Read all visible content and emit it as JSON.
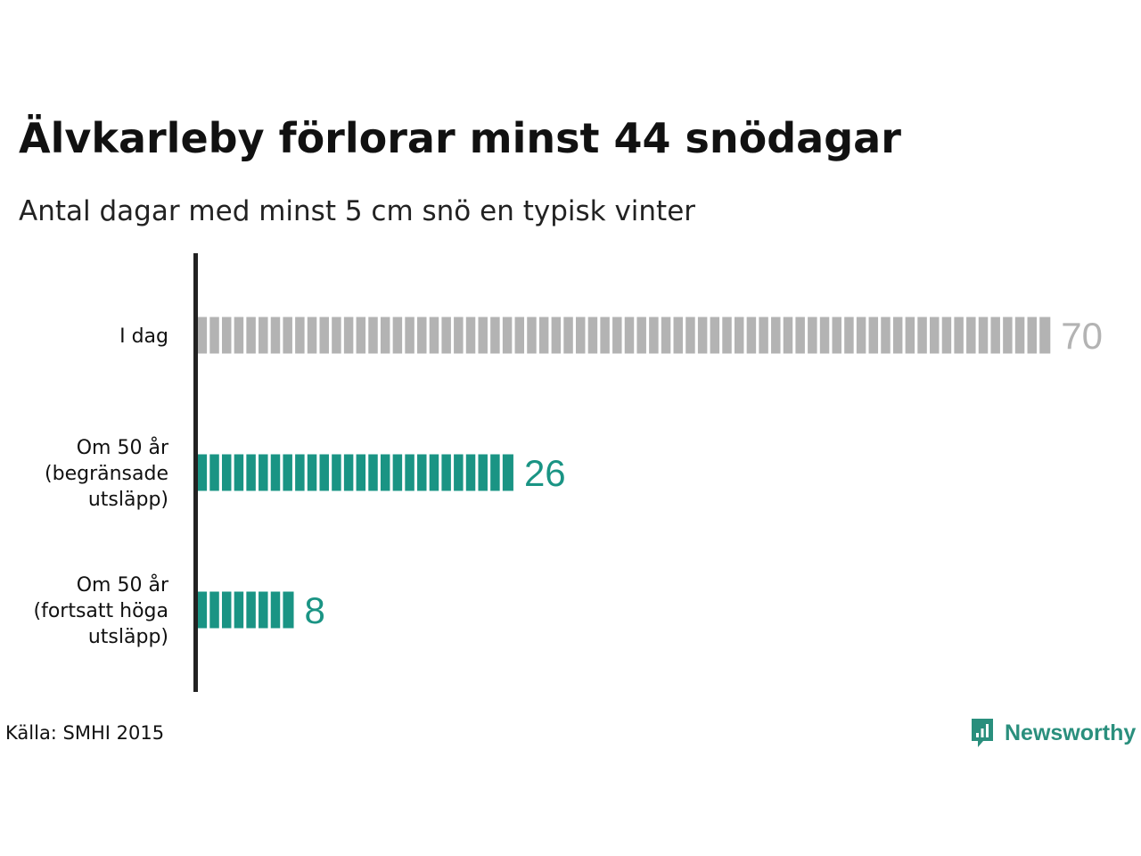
{
  "title": "Älvkarleby förlorar minst 44 snödagar",
  "subtitle": "Antal dagar med minst 5 cm snö en typisk vinter",
  "source": "Källa: SMHI 2015",
  "brand": {
    "name": "Newsworthy",
    "icon": "newsworthy-chart-bubble-icon",
    "color": "#2a8f7d"
  },
  "colors": {
    "today": "#b3b3b3",
    "future": "#1a9484",
    "axis": "#222222"
  },
  "chart_data": {
    "type": "bar",
    "orientation": "horizontal",
    "style": "segmented bars, one segment per day",
    "categories": [
      [
        "I dag"
      ],
      [
        "Om 50 år",
        "(begränsade",
        "utsläpp)"
      ],
      [
        "Om 50 år",
        "(fortsatt höga",
        "utsläpp)"
      ]
    ],
    "values": [
      70,
      26,
      8
    ],
    "value_labels": [
      "70",
      "26",
      "8"
    ],
    "bar_colors": [
      "#b3b3b3",
      "#1a9484",
      "#1a9484"
    ],
    "title": "Älvkarleby förlorar minst 44 snödagar",
    "xlabel": "",
    "ylabel": "",
    "xlim": [
      0,
      70
    ],
    "grid": false,
    "legend": "none"
  }
}
